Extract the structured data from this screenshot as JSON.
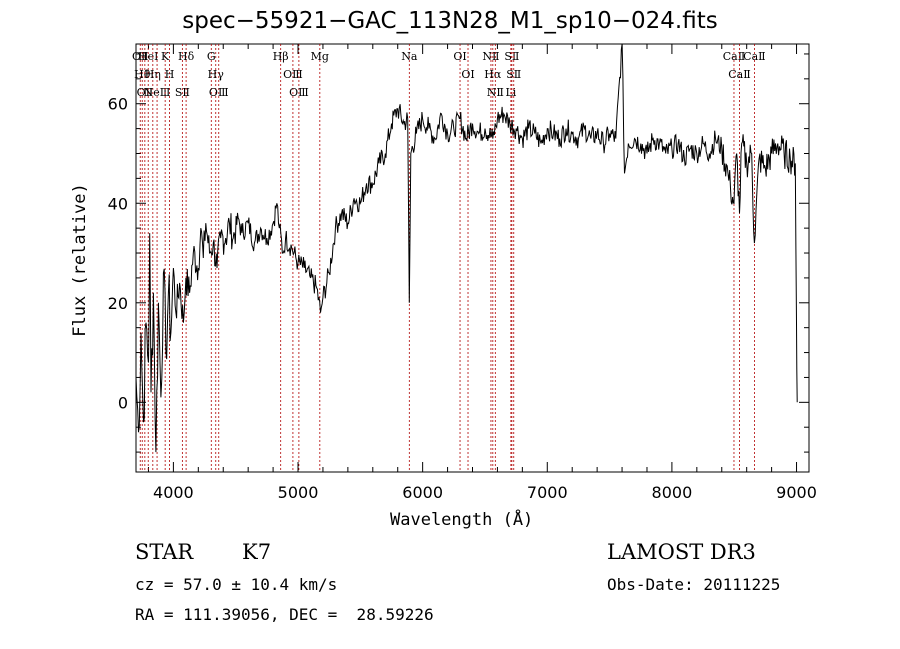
{
  "chart_data": {
    "type": "line",
    "title": "spec−55921−GAC_113N28_M1_sp10−024.fits",
    "xlabel": "Wavelength (Å)",
    "ylabel": "Flux (relative)",
    "xlim": [
      3700,
      9100
    ],
    "ylim": [
      -14,
      72
    ],
    "xticks": [
      4000,
      5000,
      6000,
      7000,
      8000,
      9000
    ],
    "yticks": [
      0,
      20,
      40,
      60
    ],
    "series": [
      {
        "points": [
          [
            3700,
            5
          ],
          [
            3720,
            -6
          ],
          [
            3740,
            14
          ],
          [
            3760,
            -4
          ],
          [
            3780,
            16
          ],
          [
            3800,
            8
          ],
          [
            3810,
            34
          ],
          [
            3820,
            2
          ],
          [
            3840,
            22
          ],
          [
            3860,
            -10
          ],
          [
            3880,
            20
          ],
          [
            3900,
            1
          ],
          [
            3920,
            26
          ],
          [
            3940,
            10
          ],
          [
            3960,
            22
          ],
          [
            3980,
            14
          ],
          [
            4000,
            27
          ],
          [
            4020,
            18
          ],
          [
            4050,
            24
          ],
          [
            4080,
            16
          ],
          [
            4100,
            25
          ],
          [
            4130,
            22
          ],
          [
            4160,
            30
          ],
          [
            4200,
            27
          ],
          [
            4220,
            35
          ],
          [
            4240,
            29
          ],
          [
            4260,
            36
          ],
          [
            4290,
            30
          ],
          [
            4320,
            32
          ],
          [
            4350,
            27
          ],
          [
            4380,
            33
          ],
          [
            4420,
            33
          ],
          [
            4450,
            36
          ],
          [
            4480,
            33
          ],
          [
            4520,
            37
          ],
          [
            4550,
            34
          ],
          [
            4600,
            36
          ],
          [
            4650,
            32
          ],
          [
            4700,
            35
          ],
          [
            4750,
            33
          ],
          [
            4800,
            36
          ],
          [
            4830,
            40
          ],
          [
            4850,
            35
          ],
          [
            4880,
            30
          ],
          [
            4900,
            33
          ],
          [
            4950,
            31
          ],
          [
            5000,
            28
          ],
          [
            5050,
            27
          ],
          [
            5100,
            25
          ],
          [
            5150,
            23
          ],
          [
            5180,
            18
          ],
          [
            5200,
            21
          ],
          [
            5250,
            26
          ],
          [
            5300,
            35
          ],
          [
            5350,
            38
          ],
          [
            5400,
            36
          ],
          [
            5450,
            41
          ],
          [
            5500,
            40
          ],
          [
            5550,
            44
          ],
          [
            5600,
            44
          ],
          [
            5650,
            48
          ],
          [
            5700,
            50
          ],
          [
            5750,
            56
          ],
          [
            5800,
            59
          ],
          [
            5850,
            56
          ],
          [
            5880,
            57
          ],
          [
            5893,
            20
          ],
          [
            5905,
            50
          ],
          [
            5950,
            54
          ],
          [
            6000,
            57
          ],
          [
            6050,
            55
          ],
          [
            6100,
            53
          ],
          [
            6150,
            58
          ],
          [
            6200,
            54
          ],
          [
            6250,
            55
          ],
          [
            6300,
            57
          ],
          [
            6350,
            53
          ],
          [
            6400,
            56
          ],
          [
            6450,
            54
          ],
          [
            6500,
            55
          ],
          [
            6563,
            53
          ],
          [
            6600,
            57
          ],
          [
            6650,
            58
          ],
          [
            6700,
            56
          ],
          [
            6750,
            55
          ],
          [
            6800,
            53
          ],
          [
            6850,
            55
          ],
          [
            6900,
            54
          ],
          [
            6950,
            52
          ],
          [
            7000,
            55
          ],
          [
            7050,
            54
          ],
          [
            7100,
            53
          ],
          [
            7150,
            55
          ],
          [
            7200,
            54
          ],
          [
            7250,
            53
          ],
          [
            7300,
            55
          ],
          [
            7350,
            53
          ],
          [
            7400,
            54
          ],
          [
            7450,
            52
          ],
          [
            7500,
            54
          ],
          [
            7550,
            53
          ],
          [
            7600,
            72
          ],
          [
            7620,
            46
          ],
          [
            7650,
            52
          ],
          [
            7700,
            53
          ],
          [
            7750,
            52
          ],
          [
            7800,
            50
          ],
          [
            7850,
            53
          ],
          [
            7900,
            52
          ],
          [
            7950,
            50
          ],
          [
            8000,
            51
          ],
          [
            8050,
            52
          ],
          [
            8100,
            49
          ],
          [
            8150,
            51
          ],
          [
            8200,
            50
          ],
          [
            8250,
            52
          ],
          [
            8300,
            50
          ],
          [
            8350,
            53
          ],
          [
            8400,
            51
          ],
          [
            8450,
            46
          ],
          [
            8470,
            43
          ],
          [
            8498,
            40
          ],
          [
            8520,
            50
          ],
          [
            8542,
            38
          ],
          [
            8560,
            52
          ],
          [
            8600,
            48
          ],
          [
            8640,
            50
          ],
          [
            8662,
            32
          ],
          [
            8700,
            49
          ],
          [
            8750,
            47
          ],
          [
            8800,
            50
          ],
          [
            8850,
            52
          ],
          [
            8900,
            50
          ],
          [
            8950,
            49
          ],
          [
            8990,
            48
          ],
          [
            9000,
            16
          ],
          [
            9005,
            0
          ]
        ]
      }
    ],
    "lines": [
      {
        "x": 3734,
        "label": "OⅡ"
      },
      {
        "x": 3750,
        "label": "Hθ"
      },
      {
        "x": 3771,
        "label": "OⅡ"
      },
      {
        "x": 3798,
        "label": "HeⅠ"
      },
      {
        "x": 3835,
        "label": "Hη"
      },
      {
        "x": 3869,
        "label": "NeⅢ"
      },
      {
        "x": 3934,
        "label": "K"
      },
      {
        "x": 3969,
        "label": "H"
      },
      {
        "x": 4072,
        "label": "SⅡ"
      },
      {
        "x": 4102,
        "label": "Hδ"
      },
      {
        "x": 4304,
        "label": "G"
      },
      {
        "x": 4340,
        "label": "Hγ"
      },
      {
        "x": 4364,
        "label": "OⅢ"
      },
      {
        "x": 4861,
        "label": "Hβ"
      },
      {
        "x": 4959,
        "label": "OⅢ"
      },
      {
        "x": 5007,
        "label": "OⅢ"
      },
      {
        "x": 5175,
        "label": "Mg"
      },
      {
        "x": 5893,
        "label": "Na"
      },
      {
        "x": 6300,
        "label": "OⅠ"
      },
      {
        "x": 6364,
        "label": "OⅠ"
      },
      {
        "x": 6548,
        "label": "NⅡ"
      },
      {
        "x": 6563,
        "label": "Hα"
      },
      {
        "x": 6583,
        "label": "NⅡ"
      },
      {
        "x": 6708,
        "label": "Li"
      },
      {
        "x": 6716,
        "label": "SⅡ"
      },
      {
        "x": 6731,
        "label": "SⅡ"
      },
      {
        "x": 8498,
        "label": "CaⅡ"
      },
      {
        "x": 8542,
        "label": "CaⅡ"
      },
      {
        "x": 8662,
        "label": "CaⅡ"
      }
    ]
  },
  "info": {
    "class": "STAR",
    "subclass": "K7",
    "survey": "LAMOST DR3",
    "cz": "cz = 57.0 ± 10.4 km/s",
    "obs_date": "Obs-Date: 20111225",
    "radec": "RA = 111.39056, DEC =  28.59226"
  }
}
